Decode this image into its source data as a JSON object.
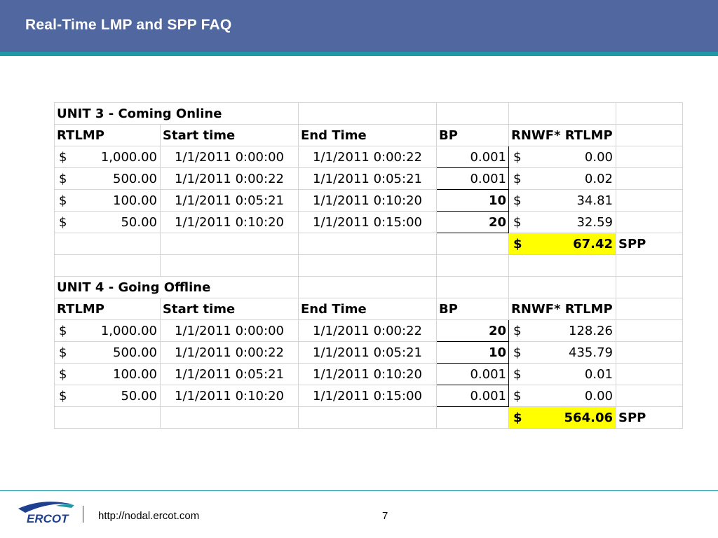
{
  "slide": {
    "title": "Real-Time LMP and SPP FAQ",
    "footer_url": "http://nodal.ercot.com",
    "page_number": "7",
    "logo_text": "ERCOT"
  },
  "unit3": {
    "title": "UNIT 3 - Coming Online",
    "headers": [
      "RTLMP",
      "Start time",
      "End Time",
      "BP",
      "RNWF* RTLMP"
    ],
    "rows": [
      {
        "rtlmp": "1,000.00",
        "start": "1/1/2011 0:00:00",
        "end": "1/1/2011 0:00:22",
        "bp": "0.001",
        "rnwf": "0.00"
      },
      {
        "rtlmp": "500.00",
        "start": "1/1/2011 0:00:22",
        "end": "1/1/2011 0:05:21",
        "bp": "0.001",
        "rnwf": "0.02"
      },
      {
        "rtlmp": "100.00",
        "start": "1/1/2011 0:05:21",
        "end": "1/1/2011 0:10:20",
        "bp": "10",
        "rnwf": "34.81"
      },
      {
        "rtlmp": "50.00",
        "start": "1/1/2011 0:10:20",
        "end": "1/1/2011 0:15:00",
        "bp": "20",
        "rnwf": "32.59"
      }
    ],
    "total": "67.42",
    "total_label": "SPP"
  },
  "unit4": {
    "title": "UNIT 4 - Going Offline",
    "headers": [
      "RTLMP",
      "Start time",
      "End Time",
      "BP",
      "RNWF* RTLMP"
    ],
    "rows": [
      {
        "rtlmp": "1,000.00",
        "start": "1/1/2011 0:00:00",
        "end": "1/1/2011 0:00:22",
        "bp": "20",
        "rnwf": "128.26"
      },
      {
        "rtlmp": "500.00",
        "start": "1/1/2011 0:00:22",
        "end": "1/1/2011 0:05:21",
        "bp": "10",
        "rnwf": "435.79"
      },
      {
        "rtlmp": "100.00",
        "start": "1/1/2011 0:05:21",
        "end": "1/1/2011 0:10:20",
        "bp": "0.001",
        "rnwf": "0.01"
      },
      {
        "rtlmp": "50.00",
        "start": "1/1/2011 0:10:20",
        "end": "1/1/2011 0:15:00",
        "bp": "0.001",
        "rnwf": "0.00"
      }
    ],
    "total": "564.06",
    "total_label": "SPP"
  },
  "currency_symbol": "$",
  "colors": {
    "header_bg": "#5067a0",
    "accent_teal": "#1d9aa6",
    "highlight": "#ffff00",
    "logo_blue": "#1f3f8f"
  }
}
